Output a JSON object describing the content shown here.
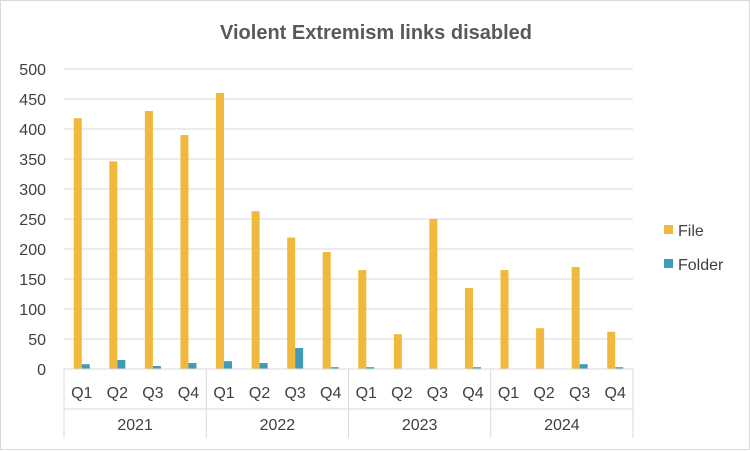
{
  "chart_data": {
    "type": "bar",
    "title": "Violent Extremism links disabled",
    "xlabel": "",
    "ylabel": "",
    "ylim": [
      0,
      500
    ],
    "yticks": [
      "0",
      "50",
      "100",
      "150",
      "200",
      "250",
      "300",
      "350",
      "400",
      "450",
      "500"
    ],
    "grid": true,
    "legend_position": "right",
    "categories": [
      "Q1",
      "Q2",
      "Q3",
      "Q4",
      "Q1",
      "Q2",
      "Q3",
      "Q4",
      "Q1",
      "Q2",
      "Q3",
      "Q4",
      "Q1",
      "Q2",
      "Q3",
      "Q4"
    ],
    "groups": [
      "2021",
      "2022",
      "2023",
      "2024"
    ],
    "series": [
      {
        "name": "File",
        "color": "#f0b83c",
        "values": [
          418,
          346,
          430,
          390,
          460,
          263,
          219,
          195,
          165,
          58,
          250,
          135,
          165,
          68,
          170,
          62
        ]
      },
      {
        "name": "Folder",
        "color": "#3f9bb8",
        "values": [
          8,
          15,
          5,
          10,
          13,
          10,
          35,
          3,
          3,
          0,
          0,
          3,
          0,
          0,
          8,
          3
        ]
      }
    ]
  }
}
